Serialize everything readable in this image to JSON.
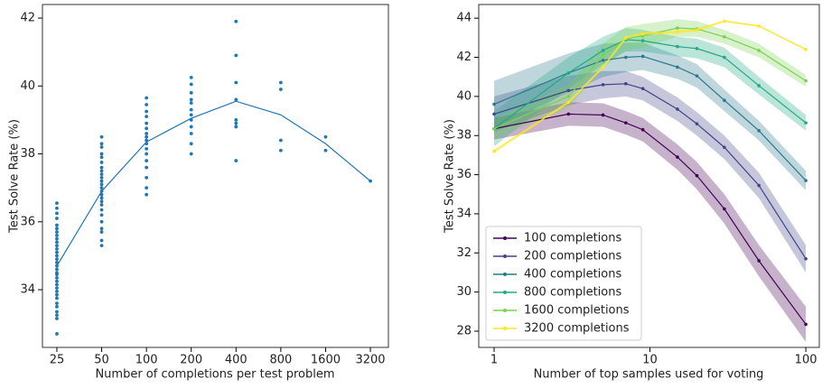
{
  "chart_data": [
    {
      "type": "scatter",
      "xlabel": "Number of completions per test problem",
      "ylabel": "Test Solve Rate (%)",
      "log_x": true,
      "color": "#1f77b4",
      "xlim": [
        20,
        4230
      ],
      "ylim": [
        32.3,
        42.4
      ],
      "xticks": [
        25,
        50,
        100,
        200,
        400,
        800,
        1600,
        3200
      ],
      "yticks": [
        34,
        36,
        38,
        40,
        42
      ],
      "groups": [
        {
          "x": 25,
          "values": [
            32.7,
            33.15,
            33.25,
            33.35,
            33.5,
            33.6,
            33.75,
            33.85,
            33.95,
            34.05,
            34.15,
            34.25,
            34.35,
            34.45,
            34.5,
            34.6,
            34.7,
            34.8,
            34.9,
            35.0,
            35.1,
            35.2,
            35.3,
            35.4,
            35.5,
            35.6,
            35.7,
            35.8,
            35.9,
            36.1,
            36.25,
            36.4,
            36.55
          ]
        },
        {
          "x": 50,
          "values": [
            35.3,
            35.45,
            35.7,
            35.8,
            36.0,
            36.2,
            36.35,
            36.5,
            36.6,
            36.7,
            36.8,
            36.9,
            37.0,
            37.1,
            37.2,
            37.3,
            37.4,
            37.5,
            37.6,
            37.75,
            37.9,
            38.0,
            38.2,
            38.3,
            38.5
          ]
        },
        {
          "x": 100,
          "values": [
            36.8,
            37.0,
            37.3,
            37.6,
            37.8,
            38.0,
            38.15,
            38.3,
            38.4,
            38.5,
            38.6,
            38.75,
            38.9,
            39.1,
            39.25,
            39.45,
            39.65
          ]
        },
        {
          "x": 200,
          "values": [
            38.0,
            38.3,
            38.6,
            38.8,
            39.0,
            39.15,
            39.3,
            39.5,
            39.6,
            39.8,
            40.05,
            40.25
          ]
        },
        {
          "x": 400,
          "values": [
            37.8,
            38.8,
            38.9,
            39.0,
            39.6,
            40.1,
            40.9,
            41.9
          ]
        },
        {
          "x": 800,
          "values": [
            38.1,
            38.4,
            39.9,
            40.1
          ]
        },
        {
          "x": 1600,
          "values": [
            38.1,
            38.5
          ]
        },
        {
          "x": 3200,
          "values": [
            37.2
          ]
        }
      ],
      "mean_line": {
        "x": [
          25,
          50,
          100,
          200,
          400,
          800,
          1600,
          3200
        ],
        "values": [
          34.7,
          36.9,
          38.35,
          39.05,
          39.55,
          39.15,
          38.3,
          37.2
        ]
      }
    },
    {
      "type": "line",
      "xlabel": "Number of top samples used for voting",
      "ylabel": "Test Solve Rate (%)",
      "log_x": true,
      "legend": "lower-left",
      "xlim": [
        0.797,
        122
      ],
      "ylim": [
        27.17,
        44.7
      ],
      "xticks": [
        1,
        10,
        100
      ],
      "yticks": [
        28,
        30,
        32,
        34,
        36,
        38,
        40,
        42,
        44
      ],
      "x": [
        1,
        3,
        5,
        7,
        9,
        15,
        20,
        30,
        50,
        100
      ],
      "series": [
        {
          "name": "100 completions",
          "color": "#440154",
          "values": [
            38.35,
            39.1,
            39.05,
            38.65,
            38.3,
            36.9,
            35.95,
            34.25,
            31.6,
            28.35
          ],
          "errors": [
            0.55,
            0.6,
            0.6,
            0.6,
            0.6,
            0.65,
            0.7,
            0.75,
            0.8,
            0.9
          ]
        },
        {
          "name": "200 completions",
          "color": "#414487",
          "values": [
            39.1,
            40.3,
            40.6,
            40.65,
            40.4,
            39.35,
            38.6,
            37.4,
            35.45,
            31.7
          ],
          "errors": [
            0.9,
            0.75,
            0.7,
            0.65,
            0.6,
            0.6,
            0.6,
            0.6,
            0.65,
            0.7
          ]
        },
        {
          "name": "400 completions",
          "color": "#2a788e",
          "values": [
            39.6,
            41.2,
            41.85,
            42.0,
            42.05,
            41.5,
            41.05,
            39.8,
            38.25,
            35.7
          ],
          "errors": [
            1.2,
            1.0,
            0.85,
            0.75,
            0.7,
            0.6,
            0.6,
            0.55,
            0.5,
            0.5
          ]
        },
        {
          "name": "800 completions",
          "color": "#22a884",
          "values": [
            38.35,
            41.2,
            42.35,
            42.9,
            42.85,
            42.55,
            42.45,
            42.0,
            40.55,
            38.65
          ],
          "errors": [
            0.9,
            0.8,
            0.7,
            0.6,
            0.55,
            0.5,
            0.5,
            0.5,
            0.45,
            0.4
          ]
        },
        {
          "name": "1600 completions",
          "color": "#7ad151",
          "values": [
            38.35,
            40.0,
            42.1,
            42.95,
            43.1,
            43.5,
            43.45,
            43.05,
            42.35,
            40.8
          ],
          "errors": [
            0.5,
            0.6,
            0.6,
            0.6,
            0.6,
            0.45,
            0.4,
            0.35,
            0.35,
            0.3
          ]
        },
        {
          "name": "3200 completions",
          "color": "#fde725",
          "values": [
            37.2,
            39.7,
            41.5,
            43.0,
            43.2,
            43.3,
            43.4,
            43.85,
            43.6,
            42.4
          ],
          "errors": [
            0.1,
            0.1,
            0.1,
            0.1,
            0.1,
            0.1,
            0.1,
            0.05,
            0.05,
            0.05
          ]
        }
      ]
    }
  ]
}
